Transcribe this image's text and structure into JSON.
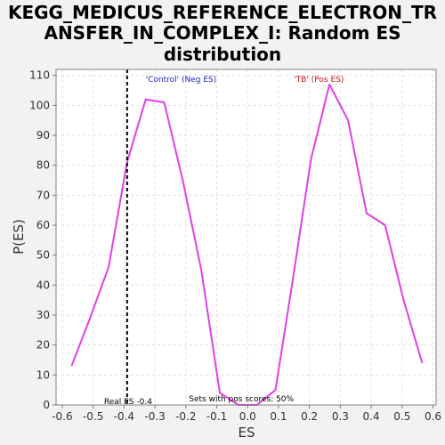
{
  "chart_data": {
    "type": "line",
    "title_lines": [
      "KEGG_MEDICUS_REFERENCE_ELECTRON_TR",
      "ANSFER_IN_COMPLEX_I: Random ES",
      "distribution"
    ],
    "xlabel": "ES",
    "ylabel": "P(ES)",
    "xlim": [
      -0.62,
      0.61
    ],
    "ylim": [
      0,
      112
    ],
    "xticks": [
      -0.6,
      -0.5,
      -0.4,
      -0.3,
      -0.2,
      -0.1,
      0.0,
      0.1,
      0.2,
      0.3,
      0.4,
      0.5,
      0.6
    ],
    "xtick_labels": [
      "-0.6",
      "-0.5",
      "-0.4",
      "-0.3",
      "-0.2",
      "-0.1",
      "0.0",
      "0.1",
      "0.2",
      "0.3",
      "0.4",
      "0.5",
      "0.6"
    ],
    "yticks": [
      0,
      10,
      20,
      30,
      40,
      50,
      60,
      70,
      80,
      90,
      100,
      110
    ],
    "ytick_labels": [
      "0",
      "10",
      "20",
      "30",
      "40",
      "50",
      "60",
      "70",
      "80",
      "90",
      "100",
      "110"
    ],
    "grid": true,
    "series": [
      {
        "color": "#e040e8",
        "points": [
          [
            -0.57,
            13
          ],
          [
            -0.51,
            29
          ],
          [
            -0.45,
            46
          ],
          [
            -0.39,
            81
          ],
          [
            -0.33,
            102
          ],
          [
            -0.27,
            101
          ],
          [
            -0.21,
            75
          ],
          [
            -0.15,
            45
          ],
          [
            -0.09,
            4
          ],
          [
            -0.03,
            0
          ],
          [
            0.03,
            0
          ],
          [
            0.09,
            5
          ],
          [
            0.145,
            41
          ],
          [
            0.205,
            82
          ],
          [
            0.265,
            107
          ],
          [
            0.325,
            95
          ],
          [
            0.385,
            64
          ],
          [
            0.445,
            60
          ],
          [
            0.505,
            35
          ],
          [
            0.565,
            14
          ]
        ]
      }
    ],
    "real_es": {
      "value": -0.39,
      "label": "Real ES -0.4",
      "color": "#000000"
    },
    "annotations": {
      "control_label": "'Control' (Neg ES)",
      "control_color": "#2020c0",
      "tb_label": "'TB' (Pos ES)",
      "tb_color": "#d01010",
      "sets_label": "Sets with pos scores: 50%"
    },
    "colors": {
      "background": "#f2f2f2",
      "plot_background": "#ffffff",
      "grid": "#e0e0e0",
      "axis": "#808080"
    }
  }
}
